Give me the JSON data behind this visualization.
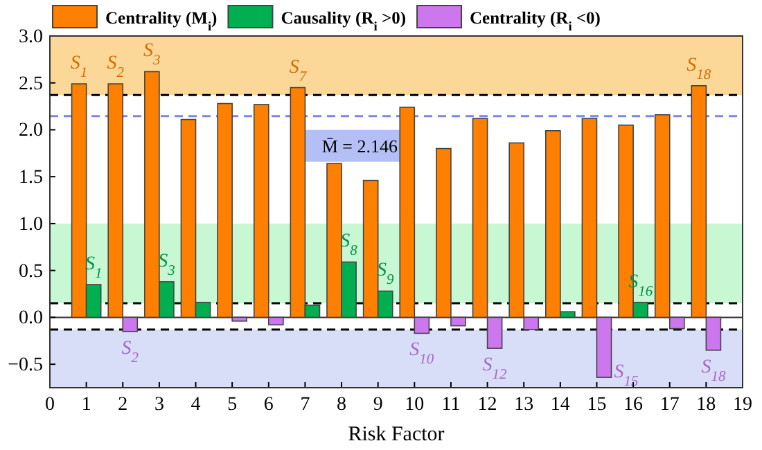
{
  "chart_data": {
    "type": "bar",
    "xlabel": "Risk Factor",
    "x": [
      1,
      2,
      3,
      4,
      5,
      6,
      7,
      8,
      9,
      10,
      11,
      12,
      13,
      14,
      15,
      16,
      17,
      18
    ],
    "series": [
      {
        "name": "Centrality (M$_{i}$)",
        "color": "#ff8000",
        "values": [
          2.49,
          2.49,
          2.62,
          2.11,
          2.28,
          2.27,
          2.45,
          1.64,
          1.46,
          2.24,
          1.8,
          2.12,
          1.86,
          1.99,
          2.12,
          2.05,
          2.16,
          2.47
        ]
      },
      {
        "name": "Causality (R$_{i}$ >0)",
        "color": "#00b050",
        "values": [
          0.35,
          null,
          0.38,
          0.16,
          null,
          null,
          0.13,
          0.59,
          0.28,
          null,
          null,
          null,
          null,
          0.06,
          null,
          0.16,
          null,
          null
        ]
      },
      {
        "name": "Centrality (R$_{i}$ <0)",
        "color": "#cc77ee",
        "values": [
          null,
          -0.15,
          null,
          null,
          -0.04,
          -0.08,
          null,
          null,
          null,
          -0.17,
          -0.09,
          -0.33,
          -0.13,
          null,
          -0.64,
          null,
          -0.12,
          -0.35
        ]
      }
    ],
    "xlim": [
      0,
      19
    ],
    "xticks": [
      0,
      1,
      2,
      3,
      4,
      5,
      6,
      7,
      8,
      9,
      10,
      11,
      12,
      13,
      14,
      15,
      16,
      17,
      18,
      19
    ],
    "ylim": [
      -0.75,
      3.0
    ],
    "yticks": [
      {
        "value": -0.5,
        "label": "−0.5"
      },
      {
        "value": 0,
        "label": "0.0"
      },
      {
        "value": 0.5,
        "label": "0.5"
      },
      {
        "value": 1,
        "label": "1.0"
      },
      {
        "value": 1.5,
        "label": "1.5"
      },
      {
        "value": 2,
        "label": "2.0"
      },
      {
        "value": 2.5,
        "label": "2.5"
      },
      {
        "value": 3,
        "label": "3.0"
      }
    ],
    "bands": [
      {
        "axis": "y",
        "from": 2.37,
        "to": 3.0,
        "color": "#fbd898"
      },
      {
        "axis": "y",
        "from": 0.15,
        "to": 1.0,
        "color": "#c8f7d4"
      },
      {
        "axis": "y",
        "from": -0.75,
        "to": -0.13,
        "color": "#d8def8"
      }
    ],
    "ref_lines": [
      {
        "axis": "y",
        "value": 2.37,
        "color": "#000000",
        "line_style": "dashed"
      },
      {
        "axis": "y",
        "value": 2.146,
        "label": "M̄ = 2.146",
        "color": "#7a86e8",
        "line_style": "dashed"
      },
      {
        "axis": "y",
        "value": 0.15,
        "color": "#000000",
        "line_style": "dashed"
      },
      {
        "axis": "y",
        "value": -0.13,
        "color": "#000000",
        "line_style": "dashed"
      }
    ],
    "annotations": [
      {
        "text": "S$_{1}$",
        "x": 1,
        "y": 2.49
      },
      {
        "text": "S$_{2}$",
        "x": 2,
        "y": 2.49
      },
      {
        "text": "S$_{3}$",
        "x": 3,
        "y": 2.62
      },
      {
        "text": "S$_{7}$",
        "x": 7,
        "y": 2.45
      },
      {
        "text": "S$_{18}$",
        "x": 18,
        "y": 2.47
      },
      {
        "text": "S$_{1}$",
        "x": 1,
        "y": 0.35
      },
      {
        "text": "S$_{3}$",
        "x": 3,
        "y": 0.38
      },
      {
        "text": "S$_{8}$",
        "x": 8,
        "y": 0.59
      },
      {
        "text": "S$_{9}$",
        "x": 9,
        "y": 0.28
      },
      {
        "text": "S$_{16}$",
        "x": 16,
        "y": 0.16
      },
      {
        "text": "S$_{2}$",
        "x": 2,
        "y": -0.15
      },
      {
        "text": "S$_{10}$",
        "x": 10,
        "y": -0.17
      },
      {
        "text": "S$_{12}$",
        "x": 12,
        "y": -0.33
      },
      {
        "text": "S$_{15}$",
        "x": 15,
        "y": -0.64
      },
      {
        "text": "S$_{18}$",
        "x": 18,
        "y": -0.35
      }
    ],
    "legend": "top"
  }
}
